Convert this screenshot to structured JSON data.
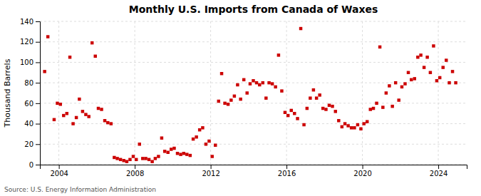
{
  "chart_data": {
    "type": "scatter",
    "title": "Monthly U.S. Imports from Canada of Waxes",
    "ylabel": "Thousand Barrels",
    "source": "Source: U.S. Energy Information Administration",
    "color": "#cc0000",
    "marker": "square",
    "grid": true,
    "xlim": [
      2003.0,
      2025.5
    ],
    "ylim": [
      0,
      140
    ],
    "xticks": [
      2004,
      2008,
      2012,
      2016,
      2020,
      2024
    ],
    "yticks": [
      0,
      20,
      40,
      60,
      80,
      100,
      120,
      140
    ],
    "x": [
      2003.25,
      2003.42,
      2003.75,
      2003.92,
      2004.08,
      2004.25,
      2004.42,
      2004.58,
      2004.75,
      2004.92,
      2005.08,
      2005.25,
      2005.42,
      2005.58,
      2005.75,
      2005.92,
      2006.08,
      2006.25,
      2006.42,
      2006.58,
      2006.75,
      2006.92,
      2007.08,
      2007.25,
      2007.42,
      2007.58,
      2007.75,
      2007.92,
      2008.08,
      2008.25,
      2008.42,
      2008.58,
      2008.75,
      2008.92,
      2009.08,
      2009.25,
      2009.42,
      2009.58,
      2009.75,
      2009.92,
      2010.08,
      2010.25,
      2010.42,
      2010.58,
      2010.75,
      2010.92,
      2011.08,
      2011.25,
      2011.42,
      2011.58,
      2011.75,
      2011.92,
      2012.08,
      2012.25,
      2012.42,
      2012.58,
      2012.75,
      2012.92,
      2013.08,
      2013.25,
      2013.42,
      2013.58,
      2013.75,
      2013.92,
      2014.08,
      2014.25,
      2014.42,
      2014.58,
      2014.75,
      2014.92,
      2015.08,
      2015.25,
      2015.42,
      2015.58,
      2015.75,
      2015.92,
      2016.08,
      2016.25,
      2016.42,
      2016.58,
      2016.75,
      2016.92,
      2017.08,
      2017.25,
      2017.42,
      2017.58,
      2017.75,
      2017.92,
      2018.08,
      2018.25,
      2018.42,
      2018.58,
      2018.75,
      2018.92,
      2019.08,
      2019.25,
      2019.42,
      2019.58,
      2019.75,
      2019.92,
      2020.08,
      2020.25,
      2020.42,
      2020.58,
      2020.75,
      2020.92,
      2021.08,
      2021.25,
      2021.42,
      2021.58,
      2021.75,
      2021.92,
      2022.08,
      2022.25,
      2022.42,
      2022.58,
      2022.75,
      2022.92,
      2023.08,
      2023.25,
      2023.42,
      2023.58,
      2023.75,
      2023.92,
      2024.08,
      2024.25,
      2024.42,
      2024.58,
      2024.75,
      2024.92
    ],
    "values": [
      91,
      125,
      44,
      60,
      59,
      48,
      50,
      105,
      40,
      46,
      64,
      52,
      49,
      47,
      119,
      106,
      55,
      54,
      43,
      41,
      40,
      7,
      6,
      5,
      4,
      3,
      5,
      8,
      5,
      20,
      6,
      6,
      5,
      3,
      6,
      8,
      26,
      13,
      12,
      15,
      16,
      11,
      10,
      11,
      10,
      9,
      25,
      27,
      34,
      36,
      20,
      23,
      8,
      19,
      62,
      89,
      60,
      59,
      63,
      67,
      78,
      64,
      83,
      70,
      79,
      82,
      80,
      78,
      80,
      65,
      80,
      79,
      76,
      107,
      72,
      51,
      48,
      53,
      50,
      45,
      133,
      39,
      55,
      65,
      73,
      65,
      68,
      55,
      54,
      58,
      57,
      52,
      43,
      37,
      40,
      38,
      36,
      36,
      39,
      35,
      40,
      42,
      54,
      55,
      60,
      115,
      56,
      70,
      77,
      57,
      80,
      63,
      76,
      79,
      90,
      83,
      84,
      105,
      107,
      95,
      105,
      90,
      116,
      82,
      85,
      95,
      102,
      80,
      91,
      80
    ]
  }
}
